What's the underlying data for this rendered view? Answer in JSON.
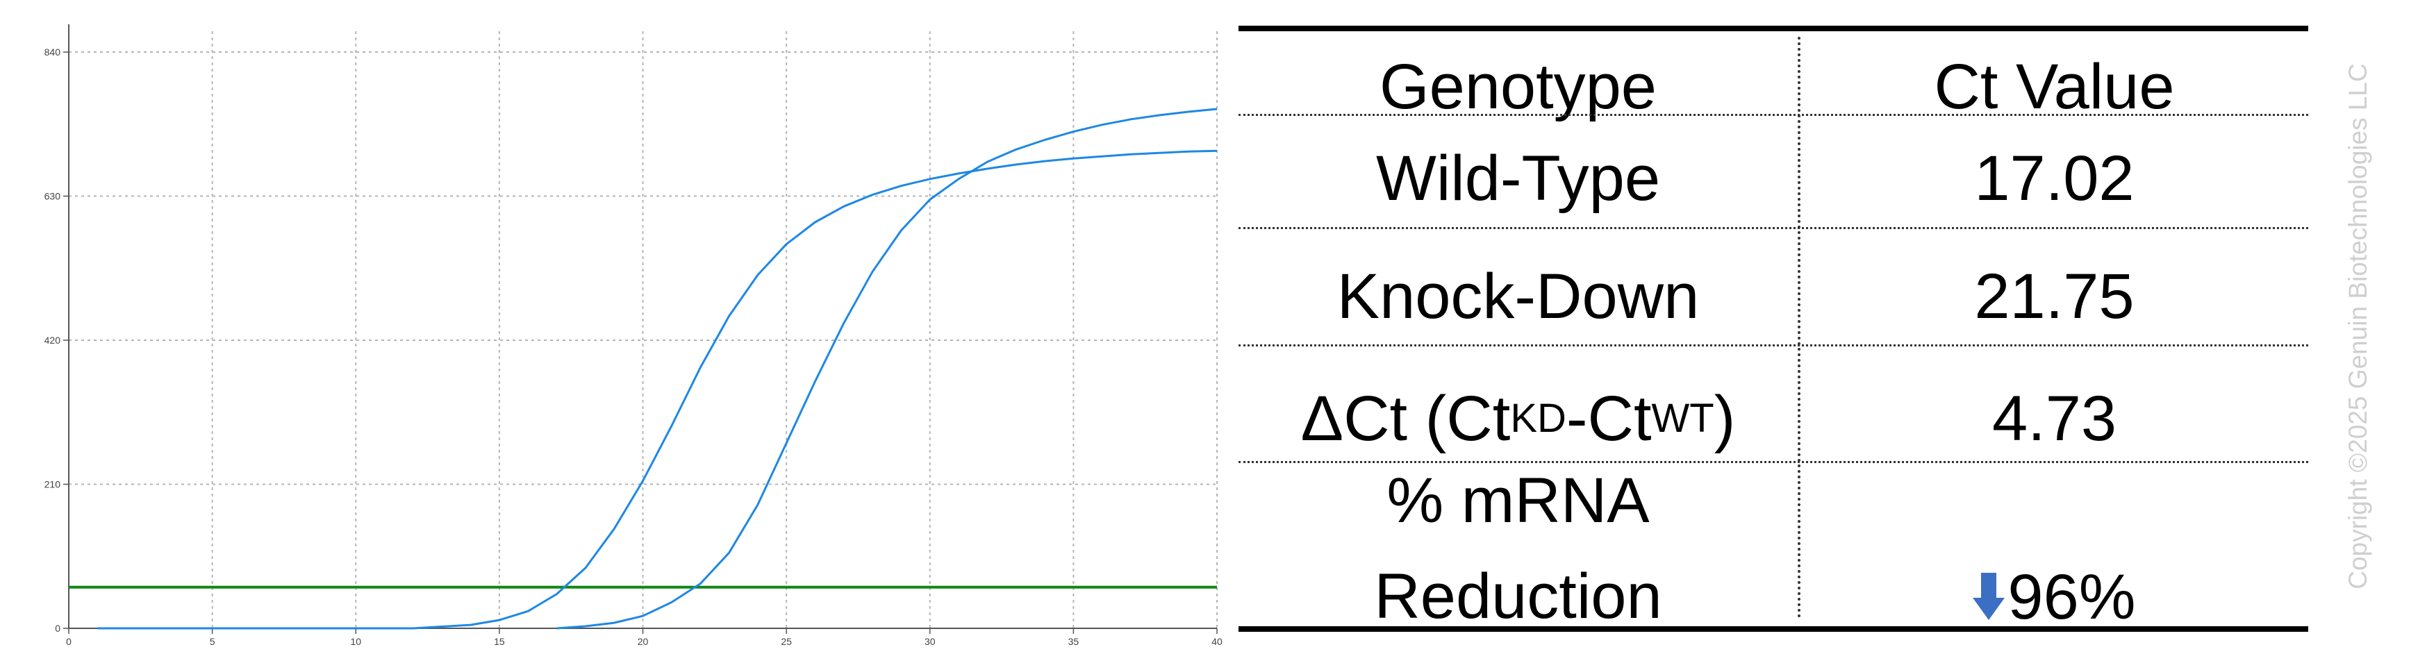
{
  "chart_data": {
    "type": "line",
    "title": "",
    "xlabel": "",
    "ylabel": "",
    "xlim": [
      0,
      40
    ],
    "ylim": [
      0,
      840
    ],
    "x_ticks": [
      0,
      5,
      10,
      15,
      20,
      25,
      30,
      35,
      40
    ],
    "y_ticks": [
      0,
      210,
      420,
      630,
      840
    ],
    "grid": true,
    "legend": "none",
    "threshold": 60,
    "series": [
      {
        "color": "#1e88e5",
        "x": [
          1,
          12,
          14,
          15,
          16,
          17,
          18,
          19,
          20,
          21,
          22,
          23,
          24,
          25,
          26,
          27,
          28,
          29,
          30,
          31,
          32,
          33,
          34,
          35,
          36,
          37,
          38,
          39,
          40
        ],
        "y": [
          0,
          0,
          5,
          12,
          25,
          50,
          88,
          145,
          215,
          295,
          380,
          455,
          515,
          560,
          592,
          615,
          632,
          645,
          655,
          663,
          670,
          676,
          681,
          685,
          688,
          691,
          693,
          695,
          696
        ]
      },
      {
        "color": "#1e88e5",
        "x": [
          17,
          18,
          19,
          20,
          21,
          22,
          23,
          24,
          25,
          26,
          27,
          28,
          29,
          30,
          31,
          32,
          33,
          34,
          35,
          36,
          37,
          38,
          39,
          40
        ],
        "y": [
          0,
          3,
          8,
          18,
          38,
          65,
          110,
          180,
          270,
          360,
          445,
          520,
          580,
          625,
          655,
          680,
          698,
          712,
          724,
          734,
          742,
          748,
          753,
          757
        ]
      }
    ],
    "threshold_color": "#118811"
  },
  "table": {
    "header": {
      "genotype": "Genotype",
      "ct_value": "Ct Value"
    },
    "rows": [
      {
        "genotype": "Wild-Type",
        "ct": "17.02"
      },
      {
        "genotype": "Knock-Down",
        "ct": "21.75"
      }
    ],
    "delta": {
      "prefix": "ΔCt (Ct",
      "sub_kd": "KD",
      "dash": "-Ct",
      "sub_wt": "WT",
      "close": ")",
      "value": "4.73"
    },
    "reduction": {
      "line1": "% mRNA",
      "line2": "Reduction",
      "value": "96%",
      "arrow_icon": "down-arrow-icon",
      "arrow_color": "#3b6fc4"
    }
  },
  "watermark": "Copyright ©2025 Genuin Biotechnologies LLC"
}
